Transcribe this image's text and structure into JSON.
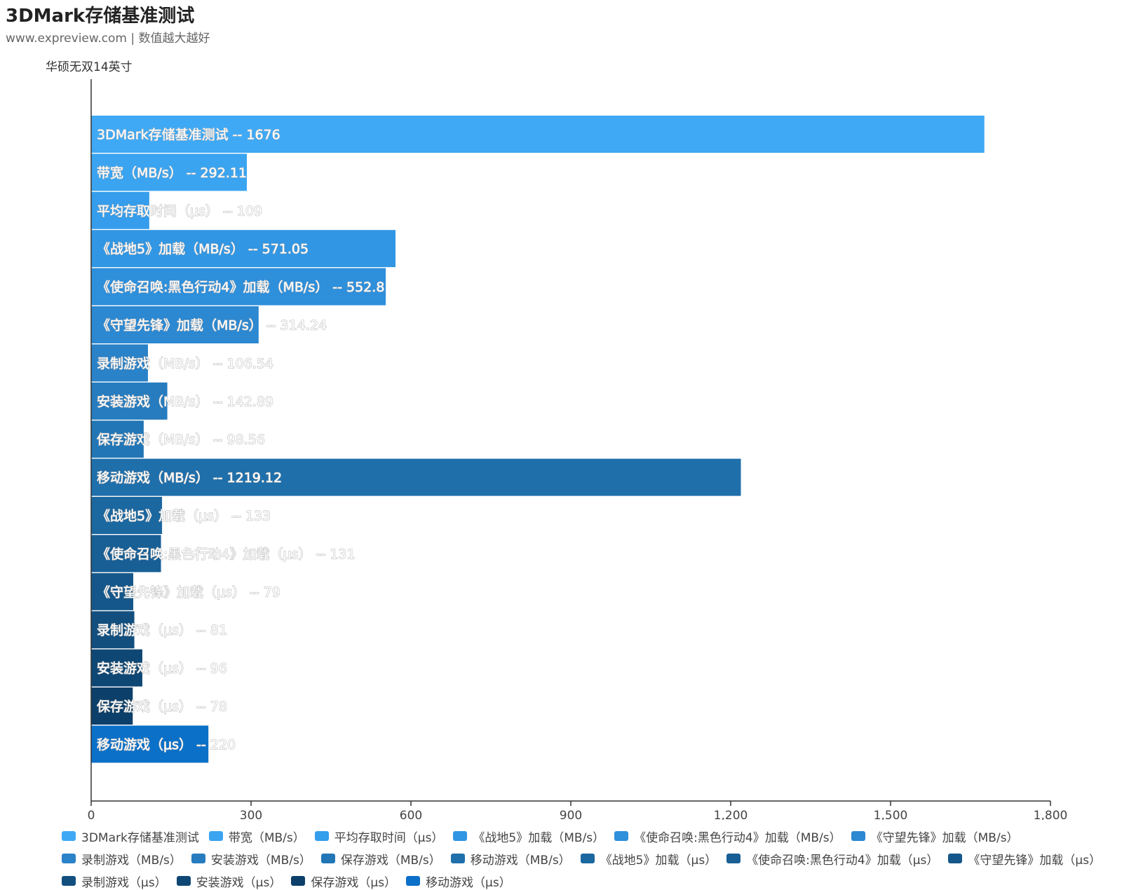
{
  "chart_data": {
    "type": "bar",
    "orientation": "horizontal",
    "title": "3DMark存储基准测试",
    "subtitle": "www.expreview.com | 数值越大越好",
    "ylabel": "华硕无双14英寸",
    "xlim": [
      0,
      1800
    ],
    "xticks": [
      "0",
      "300",
      "600",
      "900",
      "1,200",
      "1,500",
      "1,800"
    ],
    "xtick_values": [
      0,
      300,
      600,
      900,
      1200,
      1500,
      1800
    ],
    "legend_position": "bottom",
    "series": [
      {
        "name": "3DMark存储基准测试",
        "value": 1676,
        "label": "3DMark存储基准测试 -- 1676",
        "color": "#3fa9f5"
      },
      {
        "name": "带宽（MB/s）",
        "value": 292.11,
        "label": "带宽（MB/s） -- 292.11",
        "color": "#3aa4f0"
      },
      {
        "name": "平均存取时间（μs）",
        "value": 109,
        "label": "平均存取时间（μs） -- 109",
        "color": "#359deb"
      },
      {
        "name": "《战地5》加载（MB/s）",
        "value": 571.05,
        "label": "《战地5》加载（MB/s） -- 571.05",
        "color": "#3196e3"
      },
      {
        "name": "《使命召唤:黑色行动4》加载（MB/s）",
        "value": 552.8,
        "label": "《使命召唤:黑色行动4》加载（MB/s） -- 552.8",
        "color": "#2e8fdb"
      },
      {
        "name": "《守望先锋》加载（MB/s）",
        "value": 314.24,
        "label": "《守望先锋》加载（MB/s） -- 314.24",
        "color": "#2c88d1"
      },
      {
        "name": "录制游戏（MB/s）",
        "value": 106.54,
        "label": "录制游戏（MB/s） -- 106.54",
        "color": "#2a82c8"
      },
      {
        "name": "安装游戏（MB/s）",
        "value": 142.89,
        "label": "安装游戏（MB/s） -- 142.89",
        "color": "#267cbf"
      },
      {
        "name": "保存游戏（MB/s）",
        "value": 98.56,
        "label": "保存游戏（MB/s） -- 98.56",
        "color": "#2376b5"
      },
      {
        "name": "移动游戏（MB/s）",
        "value": 1219.12,
        "label": "移动游戏（MB/s） -- 1219.12",
        "color": "#1f6fab"
      },
      {
        "name": "《战地5》加载（μs）",
        "value": 133,
        "label": "《战地5》加载（μs） -- 133",
        "color": "#1b67a0"
      },
      {
        "name": "《使命召唤:黑色行动4》加载（μs）",
        "value": 131,
        "label": "《使命召唤:黑色行动4》加载（μs） -- 131",
        "color": "#185f95"
      },
      {
        "name": "《守望先锋》加载（μs）",
        "value": 79,
        "label": "《守望先锋》加载（μs） -- 79",
        "color": "#15578a"
      },
      {
        "name": "录制游戏（μs）",
        "value": 81,
        "label": "录制游戏（μs） -- 81",
        "color": "#124f7f"
      },
      {
        "name": "安装游戏（μs）",
        "value": 96,
        "label": "安装游戏（μs） -- 96",
        "color": "#0f4774"
      },
      {
        "name": "保存游戏（μs）",
        "value": 78,
        "label": "保存游戏（μs） -- 78",
        "color": "#0c3f69"
      },
      {
        "name": "移动游戏（μs）",
        "value": 220,
        "label": "移动游戏（μs） -- 220",
        "color": "#0a70c8"
      }
    ]
  }
}
